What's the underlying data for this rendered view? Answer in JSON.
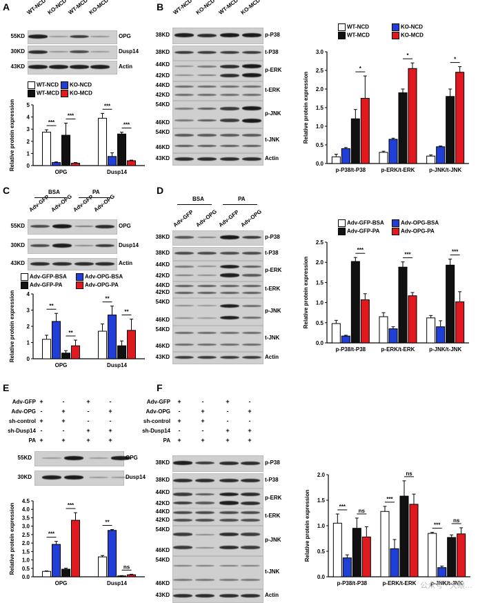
{
  "panels": {
    "A": {
      "letter": "A",
      "lanes": [
        "WT-NCD",
        "KO-NCD",
        "WT-MCD",
        "KO-MCD"
      ],
      "blots": [
        {
          "kd": "55KD",
          "name": "OPG"
        },
        {
          "kd": "30KD",
          "name": "Dusp14"
        },
        {
          "kd": "43KD",
          "name": "Actin"
        }
      ]
    },
    "B": {
      "letter": "B",
      "lanes": [
        "WT-NCD",
        "KO-NCD",
        "WT-MCD",
        "KO-MCD"
      ],
      "blots": [
        {
          "kd": "38KD",
          "name": "p-P38"
        },
        {
          "kd": "38KD",
          "name": "t-P38"
        },
        {
          "kd": "44KD",
          "kd2": "42KD",
          "name": "p-ERK"
        },
        {
          "kd": "44KD",
          "kd2": "42KD",
          "name": "t-ERK"
        },
        {
          "kd": "54KD",
          "kd2": "46KD",
          "name": "p-JNK"
        },
        {
          "kd": "54KD",
          "kd2": "46KD",
          "name": "t-JNK"
        },
        {
          "kd": "43KD",
          "name": "Actin"
        }
      ]
    },
    "C": {
      "letter": "C",
      "groups": [
        "BSA",
        "PA"
      ],
      "lanes": [
        "Adv-GFP",
        "Adv-OPG",
        "Adv-GFP",
        "Adv-OPG"
      ],
      "blots": [
        {
          "kd": "55KD",
          "name": "OPG"
        },
        {
          "kd": "30KD",
          "name": "Dusp14"
        },
        {
          "kd": "43KD",
          "name": "Actin"
        }
      ]
    },
    "D": {
      "letter": "D",
      "groups": [
        "BSA",
        "PA"
      ],
      "lanes": [
        "Adv-GFP",
        "Adv-OPG",
        "Adv-GFP",
        "Adv-OPG"
      ],
      "blots": [
        {
          "kd": "38KD",
          "name": "p-P38"
        },
        {
          "kd": "38KD",
          "name": "t-P38"
        },
        {
          "kd": "44KD",
          "kd2": "42KD",
          "name": "p-ERK"
        },
        {
          "kd": "44KD",
          "kd2": "42KD",
          "name": "t-ERK"
        },
        {
          "kd": "54KD",
          "kd2": "46KD",
          "name": "p-JNK"
        },
        {
          "kd": "54KD",
          "kd2": "46KD",
          "name": "t-JNK"
        },
        {
          "kd": "43KD",
          "name": "Actin"
        }
      ]
    },
    "E": {
      "letter": "E",
      "conditions": [
        {
          "label": "Adv-GFP",
          "signs": [
            "+",
            "-",
            "+",
            "-"
          ]
        },
        {
          "label": "Adv-OPG",
          "signs": [
            "-",
            "+",
            "-",
            "+"
          ]
        },
        {
          "label": "sh-control",
          "signs": [
            "+",
            "+",
            "-",
            "-"
          ]
        },
        {
          "label": "sh-Dusp14",
          "signs": [
            "-",
            "-",
            "+",
            "+"
          ]
        },
        {
          "label": "PA",
          "signs": [
            "+",
            "+",
            "+",
            "+"
          ]
        }
      ],
      "blots": [
        {
          "kd": "55KD",
          "name": "OPG"
        },
        {
          "kd": "30KD",
          "name": "Dusp14"
        }
      ]
    },
    "F": {
      "letter": "F",
      "conditions": [
        {
          "label": "Adv-GFP",
          "signs": [
            "+",
            "-",
            "+",
            "-"
          ]
        },
        {
          "label": "Adv-OPG",
          "signs": [
            "-",
            "+",
            "-",
            "+"
          ]
        },
        {
          "label": "sh-control",
          "signs": [
            "+",
            "+",
            "-",
            "-"
          ]
        },
        {
          "label": "sh-Dusp14",
          "signs": [
            "-",
            "-",
            "+",
            "+"
          ]
        },
        {
          "label": "PA",
          "signs": [
            "+",
            "+",
            "+",
            "+"
          ]
        }
      ],
      "blots": [
        {
          "kd": "38KD",
          "name": "p-P38"
        },
        {
          "kd": "38KD",
          "name": "t-P38"
        },
        {
          "kd": "44KD",
          "kd2": "42KD",
          "name": "p-ERK"
        },
        {
          "kd": "44KD",
          "kd2": "42KD",
          "name": "t-ERK"
        },
        {
          "kd": "54KD",
          "kd2": "46KD",
          "name": "p-JNK"
        },
        {
          "kd": "54KD",
          "kd2": "46KD",
          "name": "t-JNK"
        },
        {
          "kd": "43KD",
          "name": "Actin"
        }
      ]
    }
  },
  "colors": {
    "white": "#ffffff",
    "blue": "#1f3fd6",
    "black": "#111111",
    "red": "#e0191e"
  },
  "watermark": "公众号 · 天眼…",
  "chart_data": [
    {
      "id": "A",
      "type": "bar",
      "ylabel": "Relative protein expression",
      "ylim": [
        0,
        5
      ],
      "yticks": [
        0,
        1,
        2,
        3,
        4,
        5
      ],
      "categories": [
        "OPG",
        "Dusp14"
      ],
      "series": [
        {
          "name": "WT-NCD",
          "color": "#ffffff",
          "values": [
            2.75,
            3.9
          ],
          "errors": [
            0.2,
            0.4
          ]
        },
        {
          "name": "KO-NCD",
          "color": "#1f3fd6",
          "values": [
            0.25,
            0.75
          ],
          "errors": [
            0.05,
            0.3
          ]
        },
        {
          "name": "WT-MCD",
          "color": "#111111",
          "values": [
            2.5,
            2.6
          ],
          "errors": [
            1.0,
            0.15
          ]
        },
        {
          "name": "KO-MCD",
          "color": "#e0191e",
          "values": [
            0.2,
            0.4
          ],
          "errors": [
            0.05,
            0.05
          ]
        }
      ],
      "sig": [
        {
          "cat": 0,
          "a": 0,
          "b": 1,
          "label": "***"
        },
        {
          "cat": 0,
          "a": 2,
          "b": 3,
          "label": "***"
        },
        {
          "cat": 1,
          "a": 0,
          "b": 1,
          "label": "***"
        },
        {
          "cat": 1,
          "a": 2,
          "b": 3,
          "label": "***"
        }
      ]
    },
    {
      "id": "B",
      "type": "bar",
      "ylabel": "Relative protein expression",
      "ylim": [
        0,
        3.0
      ],
      "yticks": [
        0,
        0.5,
        1.0,
        1.5,
        2.0,
        2.5,
        3.0
      ],
      "categories": [
        "p-P38/t-P38",
        "p-ERK/t-ERK",
        "p-JNK/t-JNK"
      ],
      "series": [
        {
          "name": "WT-NCD",
          "color": "#ffffff",
          "values": [
            0.18,
            0.3,
            0.2
          ],
          "errors": [
            0.07,
            0.03,
            0.03
          ]
        },
        {
          "name": "KO-NCD",
          "color": "#1f3fd6",
          "values": [
            0.4,
            0.65,
            0.45
          ],
          "errors": [
            0.03,
            0.03,
            0.02
          ]
        },
        {
          "name": "WT-MCD",
          "color": "#111111",
          "values": [
            1.2,
            1.9,
            1.8
          ],
          "errors": [
            0.25,
            0.1,
            0.2
          ]
        },
        {
          "name": "KO-MCD",
          "color": "#e0191e",
          "values": [
            1.75,
            2.55,
            2.45
          ],
          "errors": [
            0.6,
            0.15,
            0.15
          ]
        }
      ],
      "sig": [
        {
          "cat": 0,
          "a": 2,
          "b": 3,
          "label": "*"
        },
        {
          "cat": 1,
          "a": 2,
          "b": 3,
          "label": "*"
        },
        {
          "cat": 2,
          "a": 2,
          "b": 3,
          "label": "*"
        }
      ]
    },
    {
      "id": "C",
      "type": "bar",
      "ylabel": "Relative protein expression",
      "ylim": [
        0,
        4
      ],
      "yticks": [
        0,
        1,
        2,
        3,
        4
      ],
      "categories": [
        "OPG",
        "Dusp14"
      ],
      "series": [
        {
          "name": "Adv-GFP-BSA",
          "color": "#ffffff",
          "values": [
            1.2,
            1.7
          ],
          "errors": [
            0.25,
            0.45
          ]
        },
        {
          "name": "Adv-OPG-BSA",
          "color": "#1f3fd6",
          "values": [
            2.3,
            2.7
          ],
          "errors": [
            0.5,
            0.55
          ]
        },
        {
          "name": "Adv-GFP-PA",
          "color": "#111111",
          "values": [
            0.35,
            0.8
          ],
          "errors": [
            0.15,
            0.3
          ]
        },
        {
          "name": "Adv-OPG-PA",
          "color": "#e0191e",
          "values": [
            0.8,
            1.75
          ],
          "errors": [
            0.35,
            0.7
          ]
        }
      ],
      "sig": [
        {
          "cat": 0,
          "a": 0,
          "b": 1,
          "label": "**"
        },
        {
          "cat": 0,
          "a": 2,
          "b": 3,
          "label": "**"
        },
        {
          "cat": 1,
          "a": 0,
          "b": 1,
          "label": "**"
        },
        {
          "cat": 1,
          "a": 2,
          "b": 3,
          "label": "**"
        }
      ]
    },
    {
      "id": "D",
      "type": "bar",
      "ylabel": "Relative protein expression",
      "ylim": [
        0,
        2.5
      ],
      "yticks": [
        0,
        0.5,
        1.0,
        1.5,
        2.0,
        2.5
      ],
      "categories": [
        "p-P38/t-P38",
        "p-ERK/t-ERK",
        "p-JNK/t-JNK"
      ],
      "series": [
        {
          "name": "Adv-GFP-BSA",
          "color": "#ffffff",
          "values": [
            0.48,
            0.65,
            0.62
          ],
          "errors": [
            0.08,
            0.1,
            0.06
          ]
        },
        {
          "name": "Adv-OPG-BSA",
          "color": "#1f3fd6",
          "values": [
            0.17,
            0.35,
            0.4
          ],
          "errors": [
            0.02,
            0.05,
            0.15
          ]
        },
        {
          "name": "Adv-GFP-PA",
          "color": "#111111",
          "values": [
            2.02,
            1.88,
            1.93
          ],
          "errors": [
            0.1,
            0.13,
            0.15
          ]
        },
        {
          "name": "Adv-OPG-PA",
          "color": "#e0191e",
          "values": [
            1.07,
            1.17,
            1.02
          ],
          "errors": [
            0.15,
            0.08,
            0.25
          ]
        }
      ],
      "sig": [
        {
          "cat": 0,
          "a": 2,
          "b": 3,
          "label": "***"
        },
        {
          "cat": 1,
          "a": 2,
          "b": 3,
          "label": "***"
        },
        {
          "cat": 2,
          "a": 2,
          "b": 3,
          "label": "***"
        }
      ]
    },
    {
      "id": "E",
      "type": "bar",
      "ylabel": "Relative protein expression",
      "ylim": [
        0,
        4.5
      ],
      "yticks": [
        0,
        0.5,
        1.0,
        1.5,
        2.0,
        2.5,
        3.0,
        3.5,
        4.0,
        4.5
      ],
      "categories": [
        "OPG",
        "Dusp14"
      ],
      "series": [
        {
          "name": "s1",
          "color": "#ffffff",
          "values": [
            0.32,
            1.18
          ],
          "errors": [
            0.03,
            0.08
          ]
        },
        {
          "name": "s2",
          "color": "#1f3fd6",
          "values": [
            1.92,
            2.75
          ],
          "errors": [
            0.18,
            0.05
          ]
        },
        {
          "name": "s3",
          "color": "#111111",
          "values": [
            0.45,
            0.05
          ],
          "errors": [
            0.06,
            0.02
          ]
        },
        {
          "name": "s4",
          "color": "#e0191e",
          "values": [
            3.35,
            0.12
          ],
          "errors": [
            0.45,
            0.03
          ]
        }
      ],
      "sig": [
        {
          "cat": 0,
          "a": 0,
          "b": 1,
          "label": "***"
        },
        {
          "cat": 0,
          "a": 2,
          "b": 3,
          "label": "***"
        },
        {
          "cat": 1,
          "a": 0,
          "b": 1,
          "label": "**"
        },
        {
          "cat": 1,
          "a": 2,
          "b": 3,
          "label": "ns"
        }
      ]
    },
    {
      "id": "F",
      "type": "bar",
      "ylabel": "Relative protein expression",
      "ylim": [
        0,
        2.0
      ],
      "yticks": [
        0,
        0.5,
        1.0,
        1.5,
        2.0
      ],
      "categories": [
        "p-P38/t-P38",
        "p-ERK/t-ERK",
        "p-JNK/t-JNK"
      ],
      "series": [
        {
          "name": "s1",
          "color": "#ffffff",
          "values": [
            1.05,
            1.28,
            0.85
          ],
          "errors": [
            0.18,
            0.1,
            0.02
          ]
        },
        {
          "name": "s2",
          "color": "#1f3fd6",
          "values": [
            0.37,
            0.55,
            0.18
          ],
          "errors": [
            0.06,
            0.18,
            0.03
          ]
        },
        {
          "name": "s3",
          "color": "#111111",
          "values": [
            0.95,
            1.58,
            0.77
          ],
          "errors": [
            0.2,
            0.3,
            0.05
          ]
        },
        {
          "name": "s4",
          "color": "#e0191e",
          "values": [
            0.78,
            1.42,
            0.84
          ],
          "errors": [
            0.2,
            0.2,
            0.12
          ]
        }
      ],
      "sig": [
        {
          "cat": 0,
          "a": 0,
          "b": 1,
          "label": "***"
        },
        {
          "cat": 0,
          "a": 2,
          "b": 3,
          "label": "ns"
        },
        {
          "cat": 1,
          "a": 0,
          "b": 1,
          "label": "***"
        },
        {
          "cat": 1,
          "a": 2,
          "b": 3,
          "label": "ns"
        },
        {
          "cat": 2,
          "a": 0,
          "b": 1,
          "label": "***"
        },
        {
          "cat": 2,
          "a": 2,
          "b": 3,
          "label": "ns"
        }
      ]
    }
  ]
}
